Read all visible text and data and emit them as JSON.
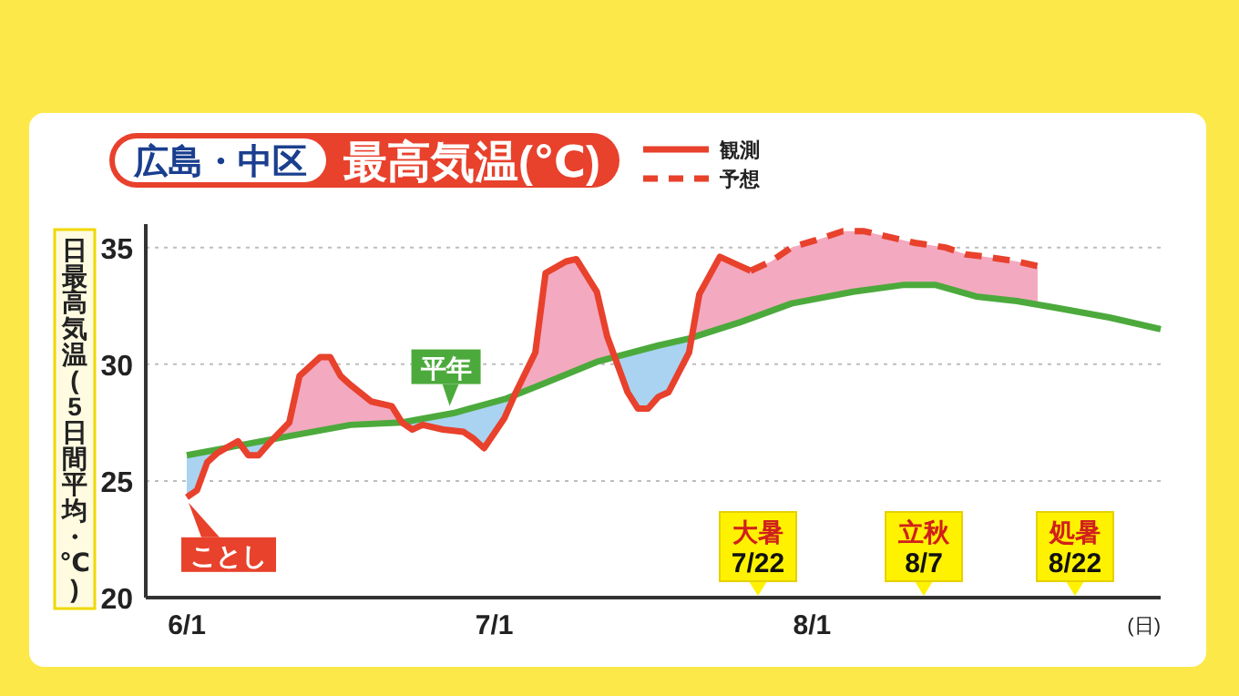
{
  "chart_data": {
    "type": "line",
    "title": "最高気温(℃)",
    "subtitle": "広島・中区",
    "ylabel": "日最高気温(5日間平均・℃)",
    "xlabel": "(日)",
    "xlim": [
      "--05-28",
      "--09-04"
    ],
    "xticks": [
      {
        "value": "--06-01",
        "label": "6/1"
      },
      {
        "value": "--07-01",
        "label": "7/1"
      },
      {
        "value": "--08-01",
        "label": "8/1"
      }
    ],
    "ylim": [
      20,
      36
    ],
    "yticks": [
      20,
      25,
      30,
      35
    ],
    "grid": "y",
    "legend": "top",
    "series": [
      {
        "color": "#4caa3c",
        "line_style": "solid",
        "x": [
          "--06-01",
          "--06-12",
          "--06-17",
          "--06-22",
          "--06-27",
          "--07-02",
          "--07-06",
          "--07-11",
          "--07-17",
          "--07-20",
          "--07-25",
          "--07-30",
          "--08-05",
          "--08-10",
          "--08-13",
          "--08-17",
          "--08-21",
          "--08-25",
          "--08-30",
          "--09-04"
        ],
        "values": [
          26.1,
          27.0,
          27.4,
          27.5,
          27.9,
          28.5,
          29.2,
          30.1,
          30.8,
          31.1,
          31.8,
          32.6,
          33.1,
          33.4,
          33.4,
          32.9,
          32.7,
          32.4,
          32.0,
          31.5
        ]
      },
      {
        "name": "観測",
        "color": "#e8412c",
        "line_style": "solid",
        "x": [
          "--06-01",
          "--06-02",
          "--06-03",
          "--06-04",
          "--06-06",
          "--06-07",
          "--06-08",
          "--06-09",
          "--06-11",
          "--06-12",
          "--06-14",
          "--06-15",
          "--06-16",
          "--06-17",
          "--06-19",
          "--06-21",
          "--06-22",
          "--06-23",
          "--06-24",
          "--06-26",
          "--06-28",
          "--06-29",
          "--06-30",
          "--07-02",
          "--07-03",
          "--07-05",
          "--07-06",
          "--07-08",
          "--07-09",
          "--07-11",
          "--07-12",
          "--07-13",
          "--07-14",
          "--07-15",
          "--07-16",
          "--07-17",
          "--07-18",
          "--07-20",
          "--07-21",
          "--07-23",
          "--07-25",
          "--07-26"
        ],
        "values": [
          24.3,
          24.6,
          25.8,
          26.2,
          26.7,
          26.1,
          26.1,
          26.6,
          27.5,
          29.5,
          30.3,
          30.3,
          29.5,
          29.1,
          28.4,
          28.2,
          27.5,
          27.2,
          27.4,
          27.2,
          27.1,
          26.8,
          26.4,
          27.7,
          28.7,
          30.5,
          33.9,
          34.4,
          34.5,
          33.1,
          31.2,
          30.0,
          28.8,
          28.1,
          28.1,
          28.6,
          28.8,
          30.5,
          33.0,
          34.6,
          34.2,
          34.0
        ]
      },
      {
        "name": "予想",
        "color": "#e8412c",
        "line_style": "dashed",
        "x": [
          "--07-26",
          "--07-28",
          "--07-30",
          "--08-02",
          "--08-04",
          "--08-06",
          "--08-09",
          "--08-11",
          "--08-14",
          "--08-16",
          "--08-18",
          "--08-21",
          "--08-23"
        ],
        "values": [
          34.0,
          34.4,
          35.0,
          35.4,
          35.7,
          35.7,
          35.4,
          35.2,
          35.0,
          34.7,
          34.6,
          34.4,
          34.2
        ]
      }
    ],
    "annotations": [
      {
        "text": "ことし",
        "x": "--06-01",
        "y": 24.3
      },
      {
        "text": "平年",
        "x": "--06-27",
        "y": 27.9
      },
      "大暑 7/22",
      "立秋 8/7",
      "処暑 8/22"
    ]
  }
}
